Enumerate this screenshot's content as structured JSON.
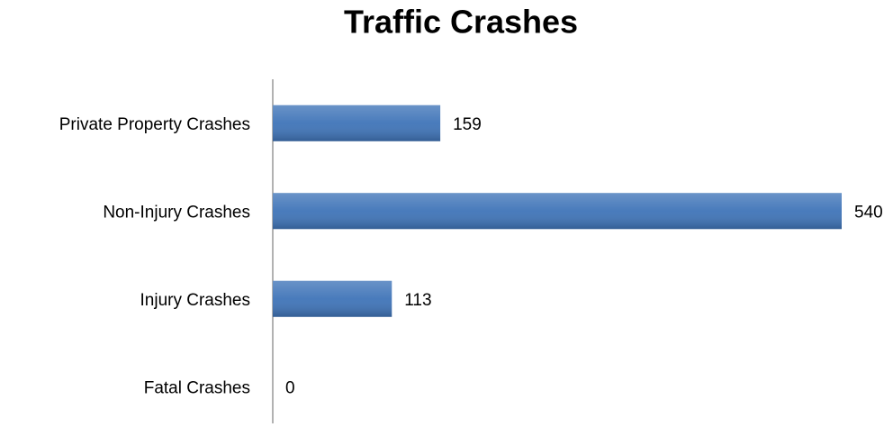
{
  "chart_data": {
    "type": "bar",
    "orientation": "horizontal",
    "title": "Traffic Crashes",
    "categories": [
      "Private Property Crashes",
      "Non-Injury Crashes",
      "Injury Crashes",
      "Fatal Crashes"
    ],
    "values": [
      159,
      540,
      113,
      0
    ],
    "color": "#3f74b8"
  }
}
